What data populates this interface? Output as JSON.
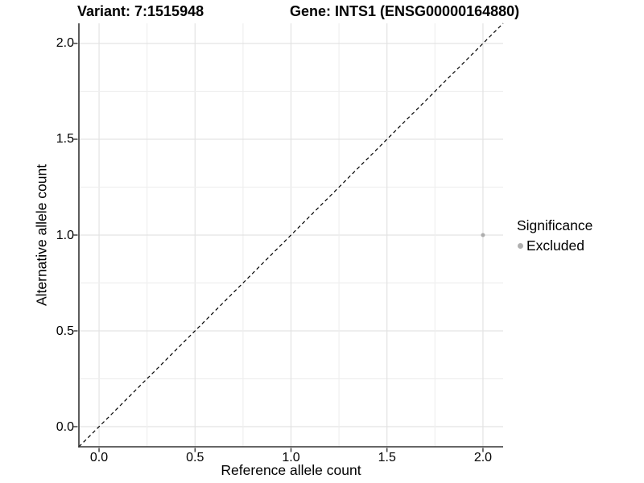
{
  "chart_data": {
    "type": "scatter",
    "titles": {
      "left": "Variant: 7:1515948",
      "right": "Gene: INTS1 (ENSG00000164880)"
    },
    "xlabel": "Reference allele count",
    "ylabel": "Alternative allele count",
    "xlim": [
      -0.105,
      2.105
    ],
    "ylim": [
      -0.105,
      2.105
    ],
    "x_ticks": {
      "values": [
        0,
        0.5,
        1,
        1.5,
        2
      ],
      "labels": [
        "0.0",
        "0.5",
        "1.0",
        "1.5",
        "2.0"
      ]
    },
    "y_ticks": {
      "values": [
        0,
        0.5,
        1,
        1.5,
        2
      ],
      "labels": [
        "0.0",
        "0.5",
        "1.0",
        "1.5",
        "2.0"
      ]
    },
    "grid": true,
    "grid_step": 0.25,
    "points": [
      {
        "x": 2.0,
        "y": 1.0,
        "significance": "Excluded"
      }
    ],
    "reference_line": {
      "type": "identity y=x",
      "style": "dashed"
    },
    "legend": {
      "title": "Significance",
      "position": "right",
      "items": [
        {
          "label": "Excluded"
        }
      ]
    },
    "colors": {
      "point": "#adadad",
      "legend_dot": "#b0b0b0",
      "axis_line": "#333333",
      "tick_mark": "#333333",
      "grid_major": "#e3e3e3",
      "grid_minor": "#efefef",
      "reference_line": "#000000",
      "text": "#000000",
      "background": "#ffffff"
    }
  }
}
